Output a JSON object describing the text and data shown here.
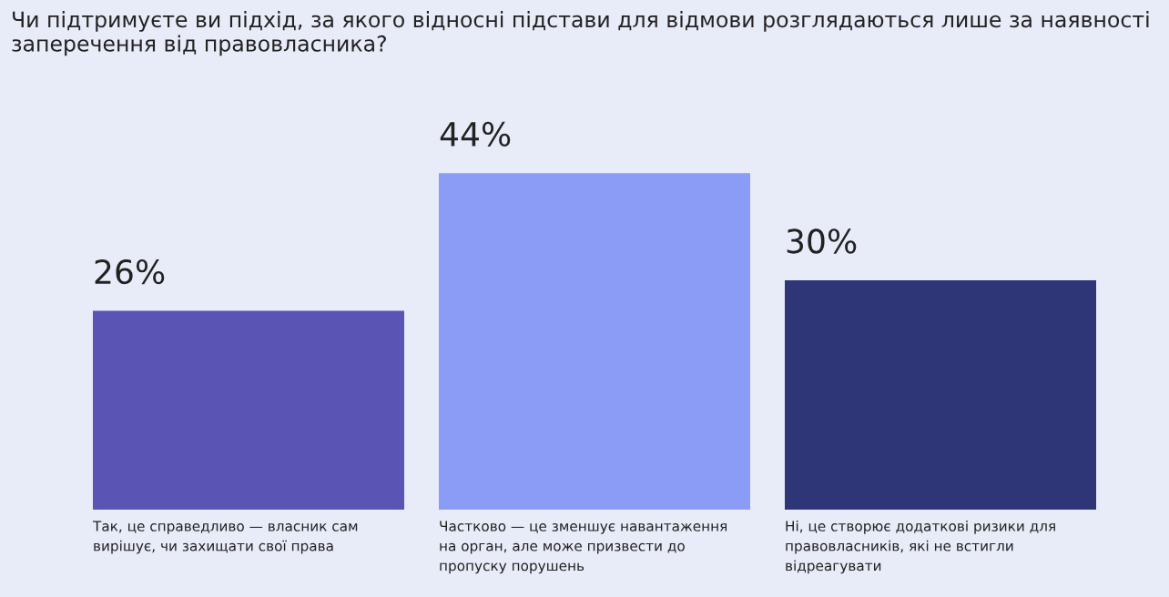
{
  "chart_data": {
    "type": "bar",
    "title": "Чи підтримуєте ви підхід, за якого відносні підстави для відмови розглядаються лише за наявності заперечення від правовласника?",
    "categories": [
      "Так, це справедливо — власник сам вирішує, чи захищати свої права",
      "Частково — це зменшує навантаження на орган, але може призвести до пропуску порушень",
      "Ні, це створює додаткові ризики для правовласників, які не встигли відреагувати"
    ],
    "values": [
      26,
      44,
      30
    ],
    "colors": [
      "#5a55b5",
      "#8b9cf7",
      "#2e3678"
    ],
    "value_labels": [
      "26%",
      "44%",
      "30%"
    ]
  }
}
